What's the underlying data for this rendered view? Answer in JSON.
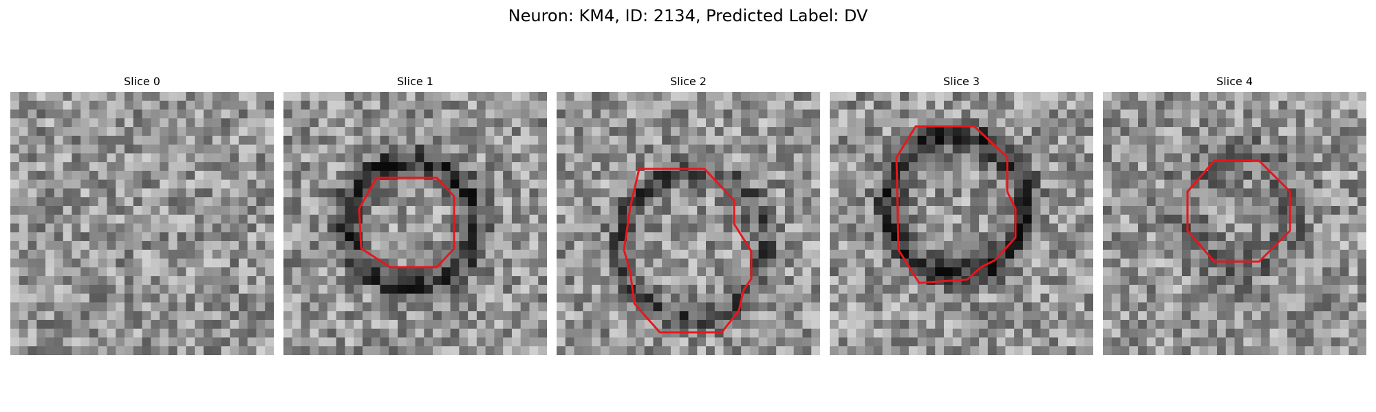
{
  "figure": {
    "title": "Neuron: KM4, ID: 2134, Predicted Label: DV"
  },
  "panels": [
    {
      "title": "Slice 0",
      "image": "noisy grayscale microscopy patch",
      "has_contour": false
    },
    {
      "title": "Slice 1",
      "image": "noisy grayscale microscopy patch with dark ring",
      "has_contour": true
    },
    {
      "title": "Slice 2",
      "image": "noisy grayscale microscopy patch with dark ring",
      "has_contour": true
    },
    {
      "title": "Slice 3",
      "image": "noisy grayscale microscopy patch with dark ring",
      "has_contour": true
    },
    {
      "title": "Slice 4",
      "image": "noisy grayscale microscopy patch",
      "has_contour": true
    }
  ],
  "colors": {
    "contour": "#e8161b",
    "background": "#ffffff"
  }
}
